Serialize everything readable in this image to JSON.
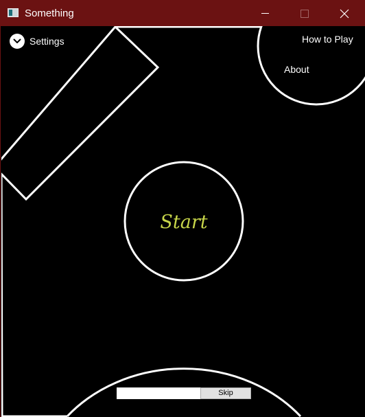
{
  "window": {
    "title": "Something",
    "icons": {
      "app": "app-window-icon",
      "minimize": "minimize-icon",
      "maximize": "maximize-icon",
      "close": "close-icon"
    }
  },
  "menu": {
    "settings_label": "Settings",
    "settings_icon": "chevron-down-icon",
    "how_to_play_label": "How to Play",
    "about_label": "About",
    "start_label": "Start",
    "skip_label": "Skip"
  },
  "progress": {
    "fraction": 1.0
  },
  "colors": {
    "titlebar": "#6b1212",
    "background": "#000000",
    "outline": "#ffffff",
    "start_text": "#c8d64a"
  }
}
